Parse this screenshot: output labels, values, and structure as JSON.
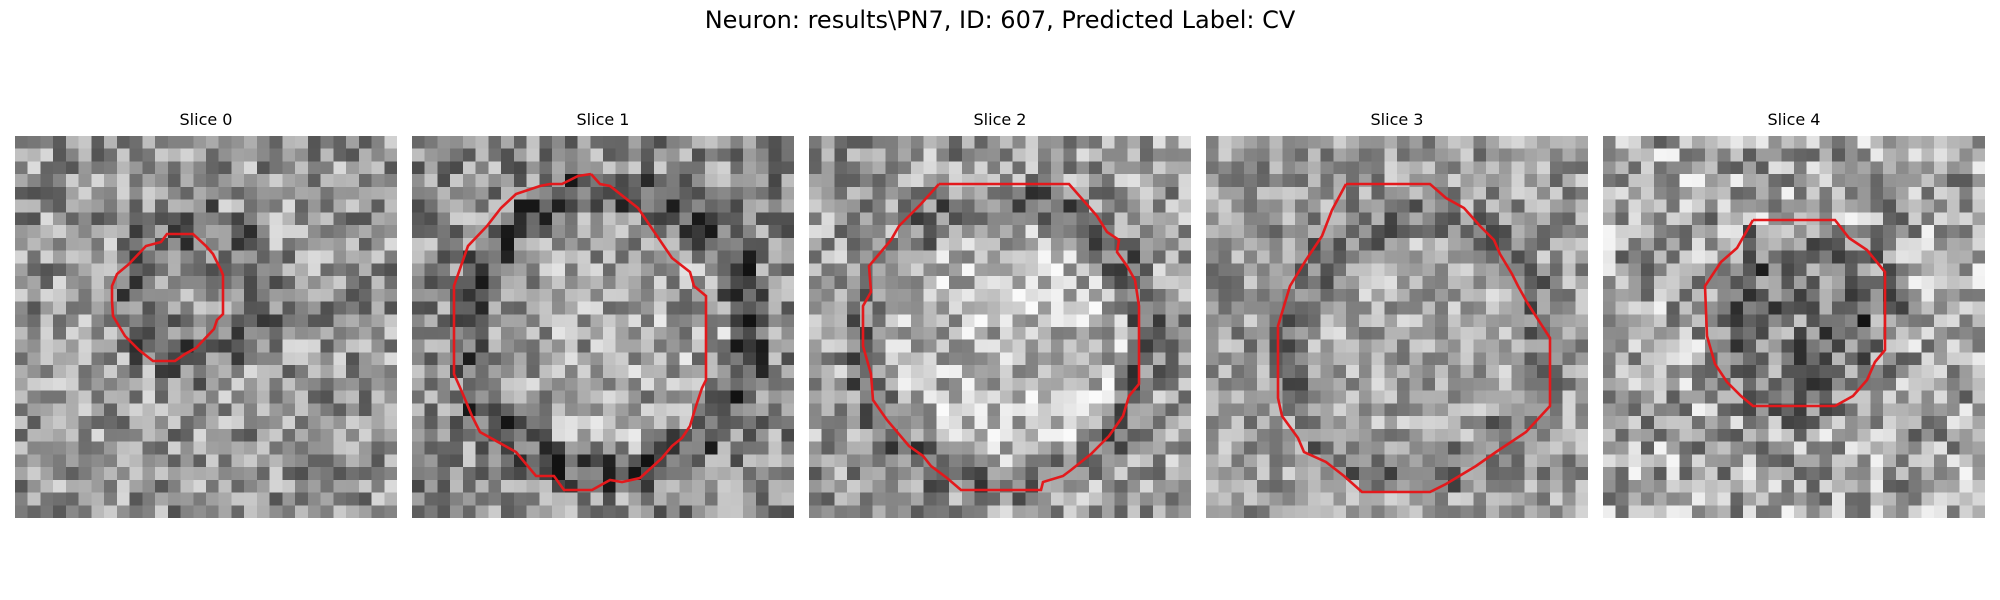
{
  "figure": {
    "title": "Neuron: results\\PN7, ID: 607, Predicted Label: CV"
  },
  "panels": [
    {
      "title": "Slice 0"
    },
    {
      "title": "Slice 1"
    },
    {
      "title": "Slice 2"
    },
    {
      "title": "Slice 3"
    },
    {
      "title": "Slice 4"
    }
  ],
  "colors": {
    "contour": "#e3191c",
    "background": "#ffffff"
  }
}
